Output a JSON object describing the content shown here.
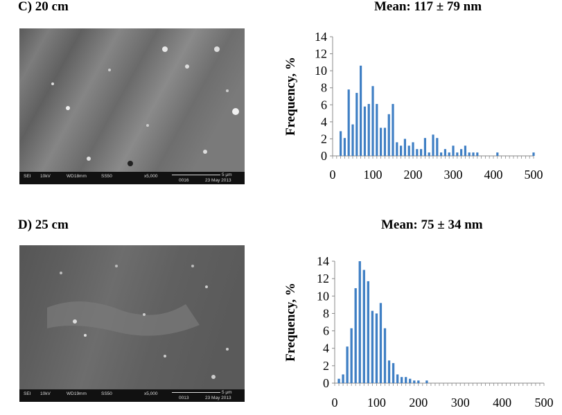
{
  "panels": [
    {
      "label": "C) 20 cm",
      "mean": "Mean: 117 ± 79 nm",
      "sem_bar": {
        "det": "SEI",
        "kv": "10kV",
        "wd": "WD18mm",
        "ss": "SS50",
        "mag": "x5,000",
        "scale": "5 µm",
        "id": "0016",
        "date": "23 May 2013"
      }
    },
    {
      "label": "D) 25 cm",
      "mean": "Mean: 75 ± 34 nm",
      "sem_bar": {
        "det": "SEI",
        "kv": "10kV",
        "wd": "WD19mm",
        "ss": "SS50",
        "mag": "x5,000",
        "scale": "5 µm",
        "id": "0013",
        "date": "23 May 2013"
      }
    }
  ],
  "colors": {
    "bar": "#3f7fc4",
    "axis": "#888888",
    "sem_bg": "#6a6a6a"
  },
  "chart_data": [
    {
      "type": "bar",
      "title": "Mean: 117 ± 79 nm",
      "xlabel": "",
      "ylabel": "Frequency, %",
      "xlim": [
        0,
        500
      ],
      "ylim": [
        0,
        14
      ],
      "xticks": [
        0,
        100,
        200,
        300,
        400,
        500
      ],
      "yticks": [
        0,
        2,
        4,
        6,
        8,
        10,
        12,
        14
      ],
      "x": [
        20,
        30,
        40,
        50,
        60,
        70,
        80,
        90,
        100,
        110,
        120,
        130,
        140,
        150,
        160,
        170,
        180,
        190,
        200,
        210,
        220,
        230,
        240,
        250,
        260,
        270,
        280,
        290,
        300,
        310,
        320,
        330,
        340,
        350,
        360,
        410,
        500
      ],
      "values": [
        2.9,
        2.1,
        7.8,
        3.7,
        7.4,
        10.6,
        5.8,
        6.1,
        8.2,
        6.1,
        3.3,
        3.3,
        4.9,
        6.1,
        1.6,
        1.2,
        2.0,
        1.2,
        1.6,
        0.8,
        0.8,
        2.1,
        0.4,
        2.5,
        2.1,
        0.4,
        0.8,
        0.4,
        1.2,
        0.4,
        0.8,
        1.2,
        0.4,
        0.4,
        0.4,
        0.4,
        0.4
      ]
    },
    {
      "type": "bar",
      "title": "Mean: 75 ± 34 nm",
      "xlabel": "",
      "ylabel": "Frequency, %",
      "xlim": [
        0,
        500
      ],
      "ylim": [
        0,
        14
      ],
      "xticks": [
        0,
        100,
        200,
        300,
        400,
        500
      ],
      "yticks": [
        0,
        2,
        4,
        6,
        8,
        10,
        12,
        14
      ],
      "x": [
        10,
        20,
        30,
        40,
        50,
        60,
        70,
        80,
        90,
        100,
        110,
        120,
        130,
        140,
        150,
        160,
        170,
        180,
        190,
        200,
        220
      ],
      "values": [
        0.5,
        1.0,
        4.2,
        6.3,
        10.9,
        14.0,
        13.0,
        11.7,
        8.3,
        8.0,
        9.2,
        6.3,
        2.6,
        2.3,
        1.0,
        0.7,
        0.7,
        0.5,
        0.3,
        0.3,
        0.3
      ]
    }
  ]
}
